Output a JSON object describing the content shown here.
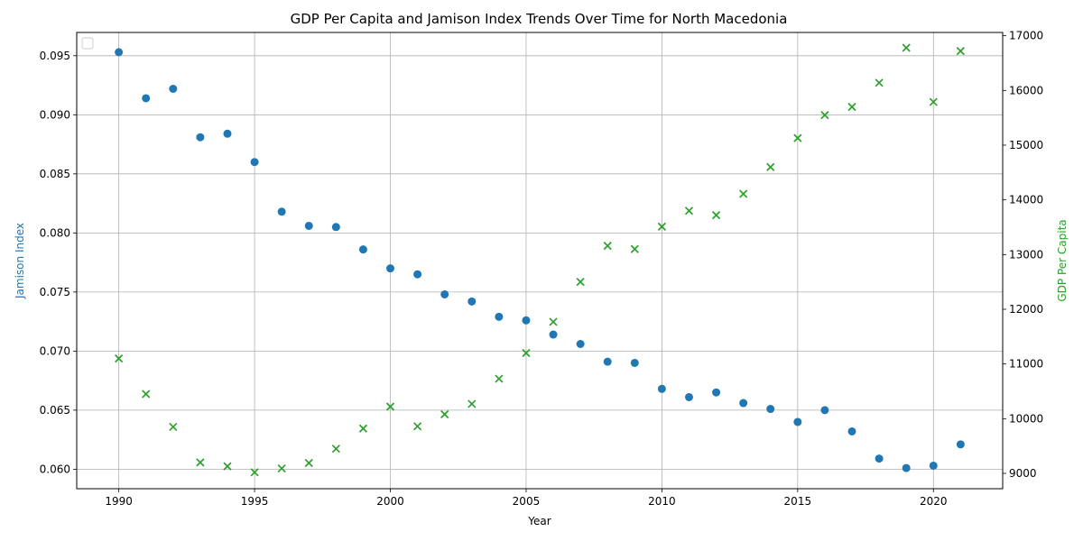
{
  "chart_data": {
    "type": "scatter",
    "title": "GDP Per Capita and Jamison Index Trends Over Time for North Macedonia",
    "xlabel": "Year",
    "ylabel_left": "Jamison Index",
    "ylabel_right": "GDP Per Capita",
    "xlim": [
      1988.45,
      2022.55
    ],
    "ylim_left": [
      0.05835,
      0.09697
    ],
    "ylim_right": [
      8720,
      17060
    ],
    "x_ticks": [
      1990,
      1995,
      2000,
      2005,
      2010,
      2015,
      2020
    ],
    "y_ticks_left": [
      "0.060",
      "0.065",
      "0.070",
      "0.075",
      "0.080",
      "0.085",
      "0.090",
      "0.095"
    ],
    "y_ticks_right": [
      "9000",
      "10000",
      "11000",
      "12000",
      "13000",
      "14000",
      "15000",
      "16000",
      "17000"
    ],
    "grid": true,
    "legend": "top-left",
    "colors": {
      "left": "#1f77b4",
      "right": "#2ca02c"
    },
    "x": [
      1990,
      1991,
      1992,
      1993,
      1994,
      1995,
      1996,
      1997,
      1998,
      1999,
      2000,
      2001,
      2002,
      2003,
      2004,
      2005,
      2006,
      2007,
      2008,
      2009,
      2010,
      2011,
      2012,
      2013,
      2014,
      2015,
      2016,
      2017,
      2018,
      2019,
      2020,
      2021
    ],
    "series": [
      {
        "marker": "circle",
        "axis": "left",
        "values": [
          0.0953,
          0.0914,
          0.0922,
          0.0881,
          0.0884,
          0.086,
          0.0818,
          0.0806,
          0.0805,
          0.0786,
          0.077,
          0.0765,
          0.0748,
          0.0742,
          0.0729,
          0.0726,
          0.0714,
          0.0706,
          0.0691,
          0.069,
          0.0668,
          0.0661,
          0.0665,
          0.0656,
          0.0651,
          0.064,
          0.065,
          0.0632,
          0.0609,
          0.0601,
          0.0603,
          0.0621
        ]
      },
      {
        "marker": "x",
        "axis": "right",
        "values": [
          11100,
          10450,
          9850,
          9200,
          9130,
          9020,
          9090,
          9190,
          9450,
          9820,
          10220,
          9860,
          10080,
          10270,
          10730,
          11200,
          11770,
          12500,
          13160,
          13100,
          13510,
          13800,
          13720,
          14110,
          14600,
          15130,
          15550,
          15700,
          16140,
          16780,
          15790,
          16720
        ]
      }
    ]
  }
}
